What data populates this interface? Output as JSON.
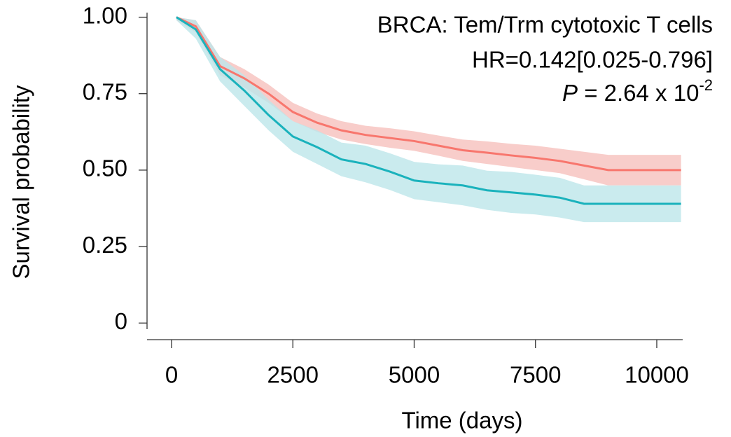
{
  "chart_data": {
    "type": "line",
    "title": "BRCA: Tem/Trm cytotoxic T cells",
    "annotations": [
      "HR=0.142[0.025-0.796]"
    ],
    "p_value": {
      "symbol": "P",
      "text": " = 2.64 x 10",
      "exponent": "-2"
    },
    "x_label": "Time (days)",
    "y_label": "Survival probability",
    "xlim": [
      -505,
      10534
    ],
    "ylim": [
      -0.02,
      1.015
    ],
    "xticks": [
      0,
      2500,
      5000,
      7500,
      10000
    ],
    "yticks": [
      {
        "value": 1,
        "label": "1.00"
      },
      0.75,
      {
        "value": 0.5,
        "label": "0.50"
      },
      0.25,
      0
    ],
    "x": [
      100,
      500,
      1000,
      1500,
      2000,
      2500,
      3000,
      3500,
      4000,
      4500,
      5000,
      5500,
      6000,
      6500,
      7000,
      7500,
      8000,
      8500,
      9000,
      10500
    ],
    "series": [
      {
        "color": "#f8766d",
        "band_color": "#f6c0bd",
        "values": [
          1.0,
          0.97,
          0.84,
          0.8,
          0.75,
          0.69,
          0.655,
          0.63,
          0.615,
          0.605,
          0.595,
          0.58,
          0.565,
          0.557,
          0.548,
          0.54,
          0.53,
          0.515,
          0.5,
          0.5
        ],
        "lower": [
          0.99,
          0.95,
          0.81,
          0.77,
          0.72,
          0.66,
          0.625,
          0.6,
          0.585,
          0.573,
          0.563,
          0.547,
          0.53,
          0.52,
          0.51,
          0.5,
          0.49,
          0.47,
          0.45,
          0.45
        ],
        "upper": [
          1.0,
          0.99,
          0.87,
          0.83,
          0.78,
          0.72,
          0.685,
          0.66,
          0.645,
          0.637,
          0.627,
          0.613,
          0.6,
          0.594,
          0.586,
          0.58,
          0.57,
          0.56,
          0.55,
          0.55
        ]
      },
      {
        "color": "#1ab2bc",
        "band_color": "#bde6ea",
        "values": [
          1.0,
          0.96,
          0.83,
          0.76,
          0.68,
          0.61,
          0.575,
          0.535,
          0.52,
          0.495,
          0.466,
          0.457,
          0.45,
          0.434,
          0.427,
          0.42,
          0.41,
          0.39,
          0.39,
          0.39
        ],
        "lower": [
          0.99,
          0.93,
          0.79,
          0.71,
          0.63,
          0.56,
          0.52,
          0.48,
          0.46,
          0.435,
          0.405,
          0.395,
          0.385,
          0.37,
          0.36,
          0.355,
          0.345,
          0.33,
          0.33,
          0.33
        ],
        "upper": [
          1.0,
          0.99,
          0.87,
          0.81,
          0.73,
          0.66,
          0.63,
          0.59,
          0.58,
          0.555,
          0.527,
          0.519,
          0.515,
          0.498,
          0.494,
          0.485,
          0.475,
          0.45,
          0.45,
          0.45
        ]
      }
    ]
  }
}
